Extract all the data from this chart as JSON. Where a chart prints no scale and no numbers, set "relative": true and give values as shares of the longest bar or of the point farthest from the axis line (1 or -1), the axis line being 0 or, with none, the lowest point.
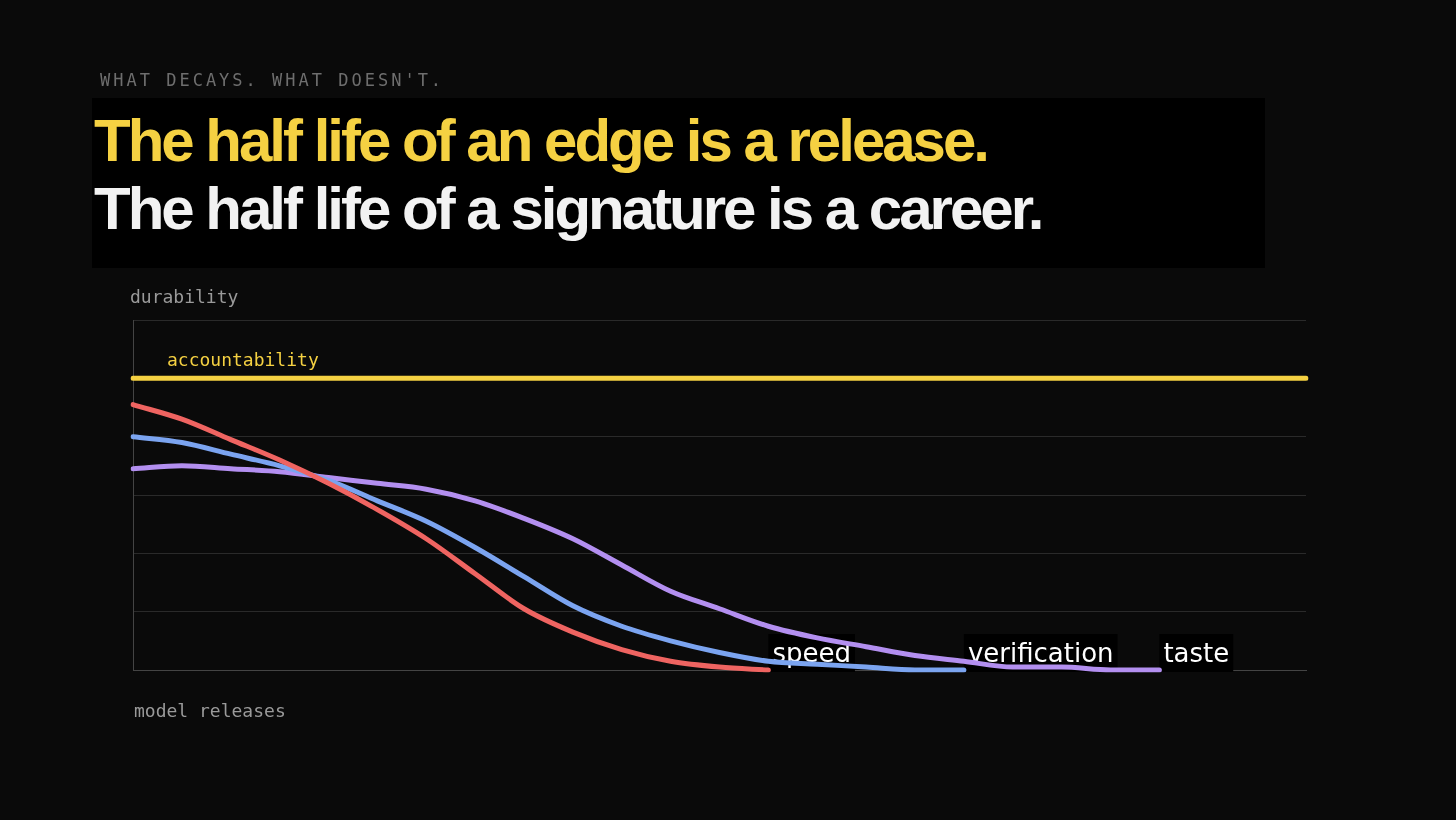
{
  "chart_data": {
    "type": "line",
    "relative": true,
    "title": "The half life of an edge is a release.",
    "subtitle": "The half life of a signature is a career.",
    "annotations": [
      "WHAT DECAYS. WHAT DOESN'T."
    ],
    "xlabel": "model releases",
    "ylabel": "durability",
    "grid": "y",
    "legend": false,
    "tick_labels": false,
    "marker": "none",
    "line_style": "solid",
    "categories": [
      null,
      null,
      null,
      null,
      null,
      null,
      null,
      null,
      null,
      null,
      null,
      null,
      null,
      null,
      null,
      null,
      null,
      null,
      null,
      null,
      null,
      null,
      null,
      null,
      null
    ],
    "series": [
      {
        "name": "accountability",
        "color": "#f5d142",
        "values": [
          1,
          1,
          1,
          1,
          1,
          1,
          1,
          1,
          1,
          1,
          1,
          1,
          1,
          1,
          1,
          1,
          1,
          1,
          1,
          1,
          1,
          1,
          1,
          1,
          1
        ]
      },
      {
        "name": "speed",
        "color": "#ef6461",
        "values": [
          0.91,
          0.86,
          0.79,
          0.72,
          0.64,
          0.55,
          0.45,
          0.33,
          0.21,
          0.13,
          0.07,
          0.03,
          0.01,
          0,
          null,
          null,
          null,
          null,
          null,
          null,
          null,
          null,
          null,
          null,
          null
        ]
      },
      {
        "name": "verification",
        "color": "#7ba4f0",
        "values": [
          0.8,
          0.78,
          0.74,
          0.7,
          0.65,
          0.58,
          0.51,
          0.42,
          0.32,
          0.22,
          0.15,
          0.1,
          0.06,
          0.03,
          0.02,
          0.01,
          0,
          0,
          null,
          null,
          null,
          null,
          null,
          null,
          null
        ]
      },
      {
        "name": "taste",
        "color": "#b38ff0",
        "values": [
          0.69,
          0.7,
          0.69,
          0.68,
          0.66,
          0.64,
          0.62,
          0.58,
          0.52,
          0.45,
          0.36,
          0.27,
          0.21,
          0.15,
          0.11,
          0.08,
          0.05,
          0.03,
          0.01,
          0.01,
          0,
          0,
          null,
          null,
          null
        ]
      }
    ]
  }
}
